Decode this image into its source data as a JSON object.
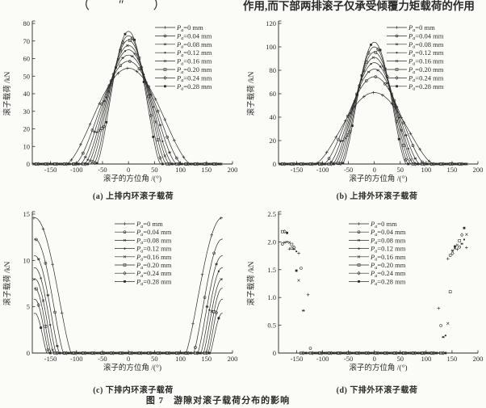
{
  "page": {
    "background": "#fbfbf8",
    "ink": "#2a2a2a"
  },
  "top_text": {
    "left_fragment": "（ ″ ）",
    "right_line": "作用,而下部两排滚子仅承受倾覆力矩载荷的作用"
  },
  "figure_caption": "图 7　游隙对滚子载荷分布的影响",
  "legend_template": {
    "symbol": "P",
    "subscript": "a",
    "equals": "=",
    "unit": " mm"
  },
  "marker_shapes": [
    "plus",
    "circle",
    "asterisk",
    "dot",
    "x",
    "square",
    "diamond",
    "fsquare"
  ],
  "chart_data": [
    {
      "id": "a",
      "type": "line",
      "caption": "(a) 上排内环滚子载荷",
      "xlabel": "滚子的方位角 /(°)",
      "ylabel": "滚子载荷 /kN",
      "xlim": [
        -185,
        200
      ],
      "ylim": [
        0,
        80
      ],
      "xticks": [
        {
          "v": -150,
          "t": "-150"
        },
        {
          "v": -100,
          "t": "-100"
        },
        {
          "v": -50,
          "t": "-50"
        },
        {
          "v": 0,
          "t": "0"
        },
        {
          "v": 50,
          "t": "50"
        },
        {
          "v": 100,
          "t": "100"
        },
        {
          "v": 150,
          "t": "150"
        },
        {
          "v": 200,
          "t": "200"
        }
      ],
      "yticks": [
        {
          "v": 0,
          "t": "0"
        },
        {
          "v": 10,
          "t": "10"
        },
        {
          "v": 20,
          "t": "20"
        },
        {
          "v": 30,
          "t": "30"
        },
        {
          "v": 40,
          "t": "40"
        },
        {
          "v": 50,
          "t": "50"
        },
        {
          "v": 60,
          "t": "60"
        },
        {
          "v": 70,
          "t": "70"
        },
        {
          "v": 80,
          "t": "80"
        }
      ],
      "legend_position": "top-right",
      "curve_model": "bell",
      "bell_center_deg": 0,
      "series": [
        {
          "clearance_mm": "0",
          "peak_kN": 54.5,
          "zero_at_deg": 120
        },
        {
          "clearance_mm": "0.04",
          "peak_kN": 58.5,
          "zero_at_deg": 103
        },
        {
          "clearance_mm": "0.08",
          "peak_kN": 62.0,
          "zero_at_deg": 93
        },
        {
          "clearance_mm": "0.12",
          "peak_kN": 65.0,
          "zero_at_deg": 85
        },
        {
          "clearance_mm": "0.16",
          "peak_kN": 67.5,
          "zero_at_deg": 79
        },
        {
          "clearance_mm": "0.20",
          "peak_kN": 70.5,
          "zero_at_deg": 73
        },
        {
          "clearance_mm": "0.24",
          "peak_kN": 73.0,
          "zero_at_deg": 67
        },
        {
          "clearance_mm": "0.28",
          "peak_kN": 75.5,
          "zero_at_deg": 62
        }
      ]
    },
    {
      "id": "b",
      "type": "line",
      "caption": "(b) 上排外环滚子载荷",
      "xlabel": "滚子的方位角 /(°)",
      "ylabel": "滚子载荷 /kN",
      "xlim": [
        -185,
        200
      ],
      "ylim": [
        0,
        120
      ],
      "xticks": [
        {
          "v": -150,
          "t": "-150"
        },
        {
          "v": -100,
          "t": "-100"
        },
        {
          "v": -50,
          "t": "-50"
        },
        {
          "v": 0,
          "t": "0"
        },
        {
          "v": 50,
          "t": "50"
        },
        {
          "v": 100,
          "t": "100"
        },
        {
          "v": 150,
          "t": "150"
        },
        {
          "v": 200,
          "t": "200"
        }
      ],
      "yticks": [
        {
          "v": 0,
          "t": "0"
        },
        {
          "v": 20,
          "t": "20"
        },
        {
          "v": 40,
          "t": "40"
        },
        {
          "v": 60,
          "t": "60"
        },
        {
          "v": 80,
          "t": "80"
        },
        {
          "v": 100,
          "t": "100"
        },
        {
          "v": 120,
          "t": "120"
        }
      ],
      "legend_position": "top-right",
      "curve_model": "bell",
      "bell_center_deg": 0,
      "series": [
        {
          "clearance_mm": "0",
          "peak_kN": 61.0,
          "zero_at_deg": 115
        },
        {
          "clearance_mm": "0.04",
          "peak_kN": 74.5,
          "zero_at_deg": 98
        },
        {
          "clearance_mm": "0.08",
          "peak_kN": 81.0,
          "zero_at_deg": 88
        },
        {
          "clearance_mm": "0.12",
          "peak_kN": 86.5,
          "zero_at_deg": 81
        },
        {
          "clearance_mm": "0.16",
          "peak_kN": 91.0,
          "zero_at_deg": 76
        },
        {
          "clearance_mm": "0.20",
          "peak_kN": 95.5,
          "zero_at_deg": 71
        },
        {
          "clearance_mm": "0.24",
          "peak_kN": 100.0,
          "zero_at_deg": 66
        },
        {
          "clearance_mm": "0.28",
          "peak_kN": 104.0,
          "zero_at_deg": 62
        }
      ]
    },
    {
      "id": "c",
      "type": "line",
      "caption": "(c) 下排内环滚子载荷",
      "xlabel": "滚子的方位角 /(°)",
      "ylabel": "滚子载荷 /kN",
      "xlim": [
        -185,
        200
      ],
      "ylim": [
        0,
        15
      ],
      "xticks": [
        {
          "v": -150,
          "t": "-150"
        },
        {
          "v": -100,
          "t": "-100"
        },
        {
          "v": -50,
          "t": "-50"
        },
        {
          "v": 0,
          "t": "0"
        },
        {
          "v": 50,
          "t": "50"
        },
        {
          "v": 100,
          "t": "100"
        },
        {
          "v": 150,
          "t": "150"
        },
        {
          "v": 200,
          "t": "200"
        }
      ],
      "yticks": [
        {
          "v": 0,
          "t": "0"
        },
        {
          "v": 5,
          "t": "5"
        },
        {
          "v": 10,
          "t": "10"
        },
        {
          "v": 15,
          "t": "15"
        }
      ],
      "legend_position": "top-center",
      "curve_model": "edge_bell",
      "bell_center_deg": 180,
      "series": [
        {
          "clearance_mm": "0",
          "peak_kN": 14.6,
          "zero_at_deg": 110
        },
        {
          "clearance_mm": "0.04",
          "peak_kN": 12.3,
          "zero_at_deg": 125
        },
        {
          "clearance_mm": "0.08",
          "peak_kN": 10.5,
          "zero_at_deg": 133
        },
        {
          "clearance_mm": "0.12",
          "peak_kN": 9.2,
          "zero_at_deg": 139
        },
        {
          "clearance_mm": "0.16",
          "peak_kN": 8.0,
          "zero_at_deg": 144
        },
        {
          "clearance_mm": "0.20",
          "peak_kN": 7.0,
          "zero_at_deg": 149
        },
        {
          "clearance_mm": "0.24",
          "peak_kN": 5.8,
          "zero_at_deg": 153
        },
        {
          "clearance_mm": "0.28",
          "peak_kN": 4.3,
          "zero_at_deg": 157
        }
      ]
    },
    {
      "id": "d",
      "type": "line",
      "caption": "(d) 下排外环滚子载荷",
      "xlabel": "滚子的方位角 /(°)",
      "ylabel": "滚子载荷 /kN",
      "xlim": [
        -185,
        200
      ],
      "ylim": [
        0,
        2.5
      ],
      "xticks": [
        {
          "v": -150,
          "t": "-150"
        },
        {
          "v": -100,
          "t": "-100"
        },
        {
          "v": -50,
          "t": "-50"
        },
        {
          "v": 0,
          "t": "0"
        },
        {
          "v": 50,
          "t": "50"
        },
        {
          "v": 100,
          "t": "100"
        },
        {
          "v": 150,
          "t": "150"
        },
        {
          "v": 200,
          "t": "200"
        }
      ],
      "yticks": [
        {
          "v": 0,
          "t": "0"
        },
        {
          "v": 0.5,
          "t": "0.5"
        },
        {
          "v": 1,
          "t": "1.0"
        },
        {
          "v": 1.5,
          "t": "1.5"
        },
        {
          "v": 2,
          "t": "2.0"
        },
        {
          "v": 2.5,
          "t": "2.5"
        }
      ],
      "legend_position": "top-center",
      "curve_model": "edge_cross",
      "bell_center_deg": 180,
      "waist": {
        "dist_deg": 28,
        "kN": 1.85
      },
      "series": [
        {
          "clearance_mm": "0",
          "edge_kN": 1.9,
          "zero_at_deg": 110
        },
        {
          "clearance_mm": "0.04",
          "edge_kN": 1.97,
          "zero_at_deg": 122
        },
        {
          "clearance_mm": "0.08",
          "edge_kN": 2.03,
          "zero_at_deg": 130
        },
        {
          "clearance_mm": "0.12",
          "edge_kN": 2.09,
          "zero_at_deg": 135
        },
        {
          "clearance_mm": "0.16",
          "edge_kN": 2.15,
          "zero_at_deg": 139
        },
        {
          "clearance_mm": "0.20",
          "edge_kN": 2.21,
          "zero_at_deg": 142
        },
        {
          "clearance_mm": "0.24",
          "edge_kN": 2.28,
          "zero_at_deg": 145
        },
        {
          "clearance_mm": "0.28",
          "edge_kN": 2.35,
          "zero_at_deg": 148
        }
      ]
    }
  ]
}
